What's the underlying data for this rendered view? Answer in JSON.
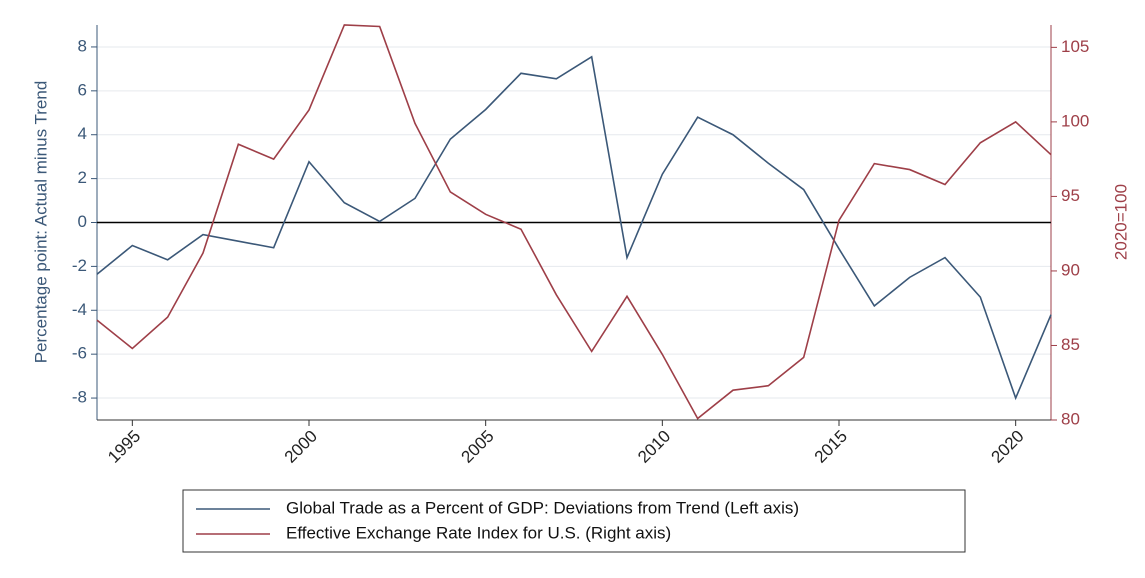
{
  "chart_data": {
    "type": "line",
    "x": [
      1994,
      1995,
      1996,
      1997,
      1998,
      1999,
      2000,
      2001,
      2002,
      2003,
      2004,
      2005,
      2006,
      2007,
      2008,
      2009,
      2010,
      2011,
      2012,
      2013,
      2014,
      2015,
      2016,
      2017,
      2018,
      2019,
      2020,
      2021
    ],
    "series": [
      {
        "name": "Global Trade as a Percent of GDP: Deviations from Trend (Left axis)",
        "color": "#3b5878",
        "axis": "y",
        "values": [
          -2.36,
          -1.05,
          -1.7,
          -0.55,
          -0.85,
          -1.15,
          2.77,
          0.9,
          0.05,
          1.1,
          3.8,
          5.15,
          6.8,
          6.55,
          7.55,
          -1.6,
          2.2,
          4.8,
          4.0,
          2.7,
          1.5,
          -1.2,
          -3.8,
          -2.5,
          -1.6,
          -3.4,
          -8.0,
          -4.2
        ]
      },
      {
        "name": "Effective Exchange Rate Index for U.S. (Right axis)",
        "color": "#9e3f48",
        "axis": "y2",
        "values": [
          86.7,
          84.8,
          86.9,
          91.2,
          98.5,
          97.5,
          100.8,
          106.5,
          106.4,
          99.9,
          95.3,
          93.8,
          92.8,
          88.4,
          84.6,
          88.3,
          84.4,
          80.1,
          82.0,
          82.3,
          84.2,
          93.4,
          97.2,
          96.8,
          95.8,
          98.6,
          100.0,
          97.8
        ]
      }
    ],
    "ylabel": "Percentage point: Actual minus Trend",
    "y2label": "2020=100",
    "xlim": [
      1994,
      2021
    ],
    "xticks": [
      1995,
      2000,
      2005,
      2010,
      2015,
      2020
    ],
    "ylim": [
      -9,
      9
    ],
    "yticks": [
      -8,
      -6,
      -4,
      -2,
      0,
      2,
      4,
      6,
      8
    ],
    "y2lim": [
      80,
      106.5
    ],
    "y2ticks": [
      80,
      85,
      90,
      95,
      100,
      105
    ],
    "hline": 0,
    "grid": true,
    "legend": "bottom"
  }
}
